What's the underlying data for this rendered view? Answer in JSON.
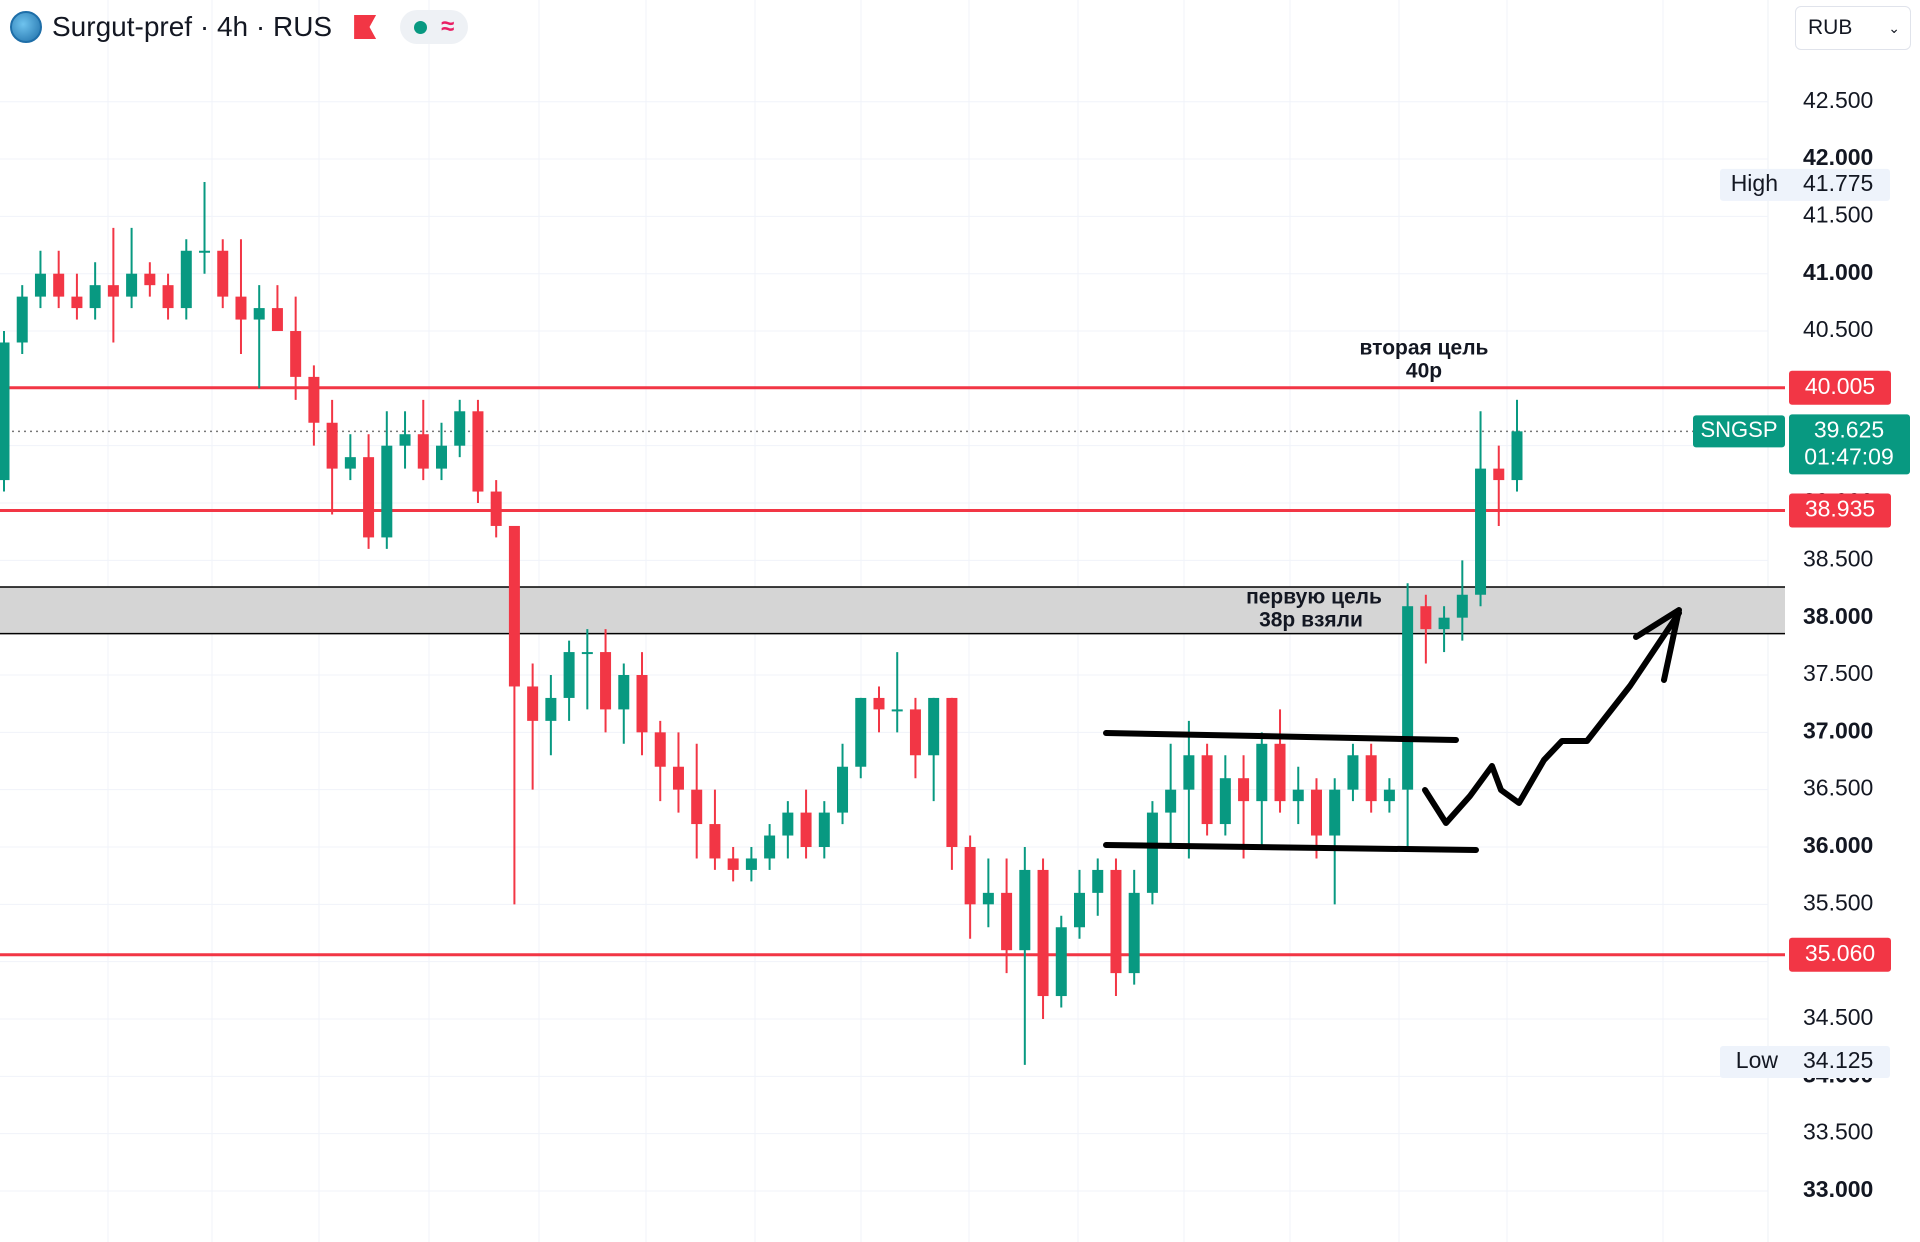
{
  "header": {
    "title": "Surgut-pref · 4h · RUS",
    "currency": "RUB"
  },
  "chart_data": {
    "type": "candlestick",
    "up_color": "#089981",
    "down_color": "#f23645",
    "open": [
      39.2,
      40.4,
      40.8,
      41.0,
      40.8,
      40.7,
      40.9,
      40.8,
      41.0,
      40.9,
      40.7,
      41.2,
      41.2,
      40.8,
      40.6,
      40.7,
      40.5,
      40.1,
      39.7,
      39.3,
      39.4,
      38.7,
      39.5,
      39.6,
      39.3,
      39.5,
      39.8,
      39.1,
      38.8,
      37.4,
      37.1,
      37.3,
      37.7,
      37.7,
      37.2,
      37.5,
      37.0,
      36.7,
      36.5,
      36.2,
      35.9,
      35.8,
      35.9,
      36.1,
      36.3,
      36.0,
      36.3,
      36.7,
      37.3,
      37.2,
      37.2,
      36.8,
      37.3,
      36.0,
      35.5,
      35.6,
      35.1,
      35.8,
      34.7,
      35.3,
      35.6,
      35.8,
      34.9,
      35.6,
      36.3,
      36.5,
      36.8,
      36.2,
      36.6,
      36.4,
      36.9,
      36.4,
      36.5,
      36.1,
      36.5,
      36.8,
      36.4,
      36.5,
      38.1,
      37.9,
      38.0,
      38.2,
      39.3,
      39.2
    ],
    "high": [
      40.5,
      40.9,
      41.2,
      41.2,
      41.0,
      41.1,
      41.4,
      41.4,
      41.1,
      41.0,
      41.3,
      41.8,
      41.3,
      41.3,
      40.9,
      40.9,
      40.8,
      40.2,
      39.9,
      39.6,
      39.6,
      39.8,
      39.8,
      39.9,
      39.7,
      39.9,
      39.9,
      39.2,
      38.8,
      37.6,
      37.5,
      37.8,
      37.9,
      37.9,
      37.6,
      37.7,
      37.1,
      37.0,
      36.9,
      36.5,
      36.0,
      36.0,
      36.2,
      36.4,
      36.5,
      36.4,
      36.9,
      37.3,
      37.4,
      37.7,
      37.3,
      37.3,
      37.3,
      36.1,
      35.9,
      35.9,
      36.0,
      35.9,
      35.4,
      35.8,
      35.9,
      35.9,
      35.8,
      36.4,
      36.9,
      37.1,
      36.9,
      36.8,
      36.8,
      37.0,
      37.2,
      36.7,
      36.6,
      36.6,
      36.9,
      36.9,
      36.6,
      38.3,
      38.2,
      38.1,
      38.5,
      39.8,
      39.5,
      39.9
    ],
    "low": [
      39.1,
      40.3,
      40.7,
      40.7,
      40.6,
      40.6,
      40.4,
      40.7,
      40.8,
      40.6,
      40.6,
      41.0,
      40.7,
      40.3,
      40.0,
      40.5,
      39.9,
      39.5,
      38.9,
      39.2,
      38.6,
      38.6,
      39.3,
      39.2,
      39.2,
      39.4,
      39.0,
      38.7,
      35.5,
      36.5,
      36.8,
      37.1,
      37.2,
      37.0,
      36.9,
      36.8,
      36.4,
      36.3,
      35.9,
      35.8,
      35.7,
      35.7,
      35.8,
      35.9,
      35.9,
      35.9,
      36.2,
      36.6,
      37.0,
      37.0,
      36.6,
      36.4,
      35.8,
      35.2,
      35.3,
      34.9,
      34.1,
      34.5,
      34.6,
      35.2,
      35.4,
      34.7,
      34.8,
      35.5,
      36.0,
      35.9,
      36.1,
      36.1,
      35.9,
      36.0,
      36.3,
      36.2,
      35.9,
      35.5,
      36.4,
      36.3,
      36.3,
      36.0,
      37.6,
      37.7,
      37.8,
      38.1,
      38.8,
      39.1
    ],
    "close": [
      40.4,
      40.8,
      41.0,
      40.8,
      40.7,
      40.9,
      40.8,
      41.0,
      40.9,
      40.7,
      41.2,
      41.2,
      40.8,
      40.6,
      40.7,
      40.5,
      40.1,
      39.7,
      39.3,
      39.4,
      38.7,
      39.5,
      39.6,
      39.3,
      39.5,
      39.8,
      39.1,
      38.8,
      37.4,
      37.1,
      37.3,
      37.7,
      37.7,
      37.2,
      37.5,
      37.0,
      36.7,
      36.5,
      36.2,
      35.9,
      35.8,
      35.9,
      36.1,
      36.3,
      36.0,
      36.3,
      36.7,
      37.3,
      37.2,
      37.2,
      36.8,
      37.3,
      36.0,
      35.5,
      35.6,
      35.1,
      35.8,
      34.7,
      35.3,
      35.6,
      35.8,
      34.9,
      35.6,
      36.3,
      36.5,
      36.8,
      36.2,
      36.6,
      36.4,
      36.9,
      36.4,
      36.5,
      36.1,
      36.5,
      36.8,
      36.4,
      36.5,
      38.1,
      37.9,
      38.0,
      38.2,
      39.3,
      39.2,
      39.625
    ],
    "ylim": [
      32.555,
      43.387
    ],
    "yticks": [
      {
        "value": 33,
        "label": "33.000"
      },
      {
        "value": 33.5,
        "label": "33.500"
      },
      {
        "value": 34,
        "label": "34.000"
      },
      {
        "value": 34.5,
        "label": "34.500"
      },
      {
        "value": 35,
        "label": "35.000"
      },
      {
        "value": 35.5,
        "label": "35.500"
      },
      {
        "value": 36,
        "label": "36.000"
      },
      {
        "value": 36.5,
        "label": "36.500"
      },
      {
        "value": 37,
        "label": "37.000"
      },
      {
        "value": 37.5,
        "label": "37.500"
      },
      {
        "value": 38,
        "label": "38.000"
      },
      {
        "value": 38.5,
        "label": "38.500"
      },
      {
        "value": 39,
        "label": "39.000"
      },
      {
        "value": 39.5,
        "label": "39.500"
      },
      {
        "value": 40,
        "label": "40.000"
      },
      {
        "value": 40.5,
        "label": "40.500"
      },
      {
        "value": 41,
        "label": "41.000"
      },
      {
        "value": 41.5,
        "label": "41.500"
      },
      {
        "value": 42,
        "label": "42.000"
      },
      {
        "value": 42.5,
        "label": "42.500"
      }
    ],
    "grid": true,
    "levels": {
      "color": "#f23645",
      "values": [
        40.005,
        38.935,
        35.06
      ],
      "value_labels": [
        "40.005",
        "38.935",
        "35.060"
      ]
    },
    "zone": {
      "values": [
        37.861,
        38.267
      ]
    },
    "high_marker": {
      "label": "High",
      "value": 41.775
    },
    "low_marker": {
      "label": "Low",
      "value": 34.125
    },
    "last_price": {
      "symbol": "SNGSP",
      "value": 39.625,
      "countdown": "01:47:09",
      "color": "#089981"
    }
  },
  "annotations": [
    {
      "lines": [
        "вторая цель",
        "40р"
      ]
    },
    {
      "lines": [
        "первую цель",
        "38р взяли"
      ]
    }
  ]
}
